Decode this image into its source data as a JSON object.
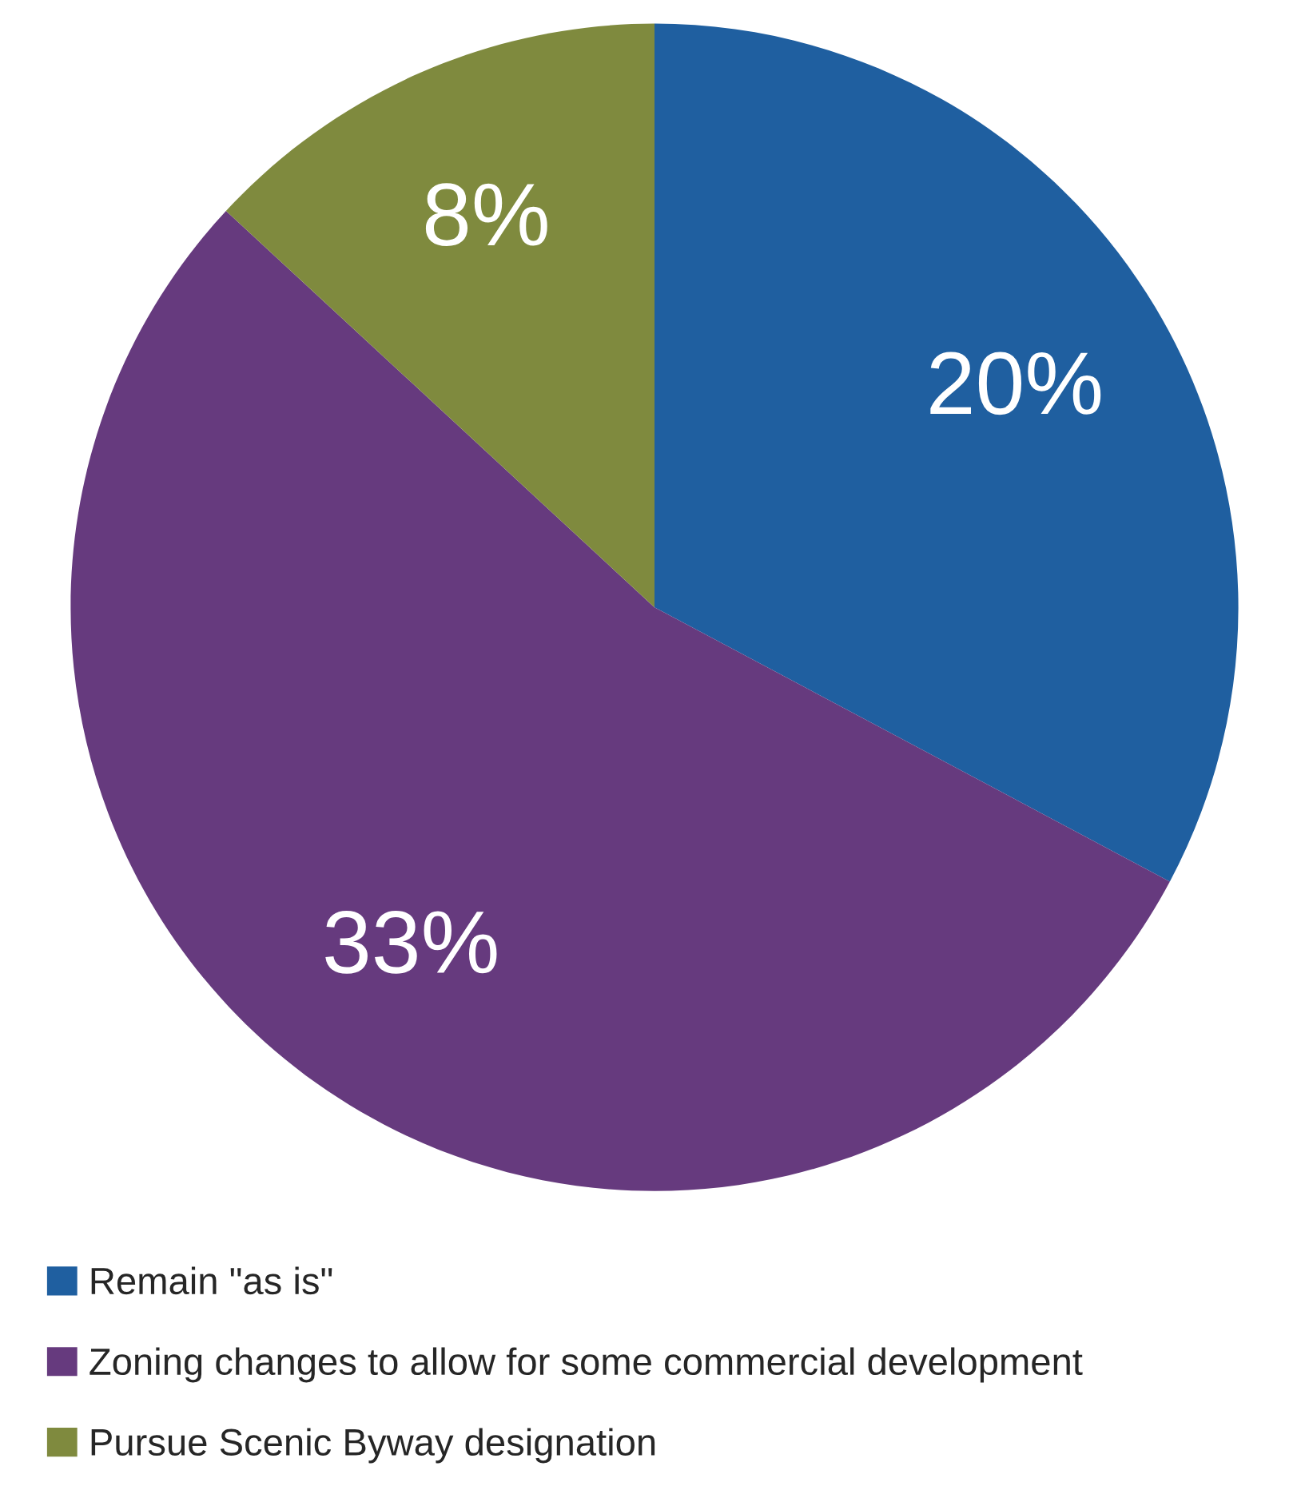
{
  "chart_data": {
    "type": "pie",
    "categories": [
      "Remain \"as is\"",
      "Zoning changes to allow for some commercial development",
      "Pursue Scenic Byway designation"
    ],
    "values": [
      20,
      33,
      8
    ],
    "colors": [
      "#1f5fa0",
      "#663a7e",
      "#7f8a3e"
    ],
    "value_labels": [
      "20%",
      "33%",
      "8%"
    ],
    "legend": "bottom"
  }
}
